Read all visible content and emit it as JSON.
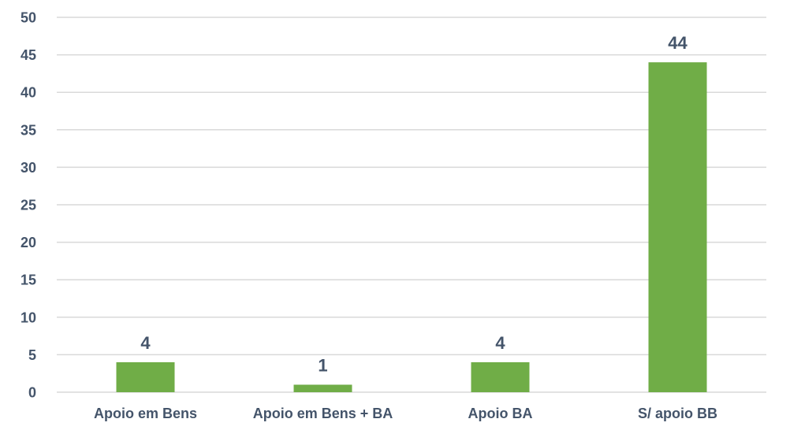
{
  "chart_data": {
    "type": "bar",
    "categories": [
      "Apoio em Bens",
      "Apoio em Bens + BA",
      "Apoio BA",
      "S/ apoio BB"
    ],
    "values": [
      4,
      1,
      4,
      44
    ],
    "data_labels": [
      "4",
      "1",
      "4",
      "44"
    ],
    "y_ticks": [
      "0",
      "5",
      "10",
      "15",
      "20",
      "25",
      "30",
      "35",
      "40",
      "45",
      "50"
    ],
    "ylim": [
      0,
      50
    ],
    "grid": true,
    "legend": "none",
    "colors": {
      "bar": "#70AD47",
      "text": "#44546A",
      "grid": "#D9D9D9"
    }
  }
}
